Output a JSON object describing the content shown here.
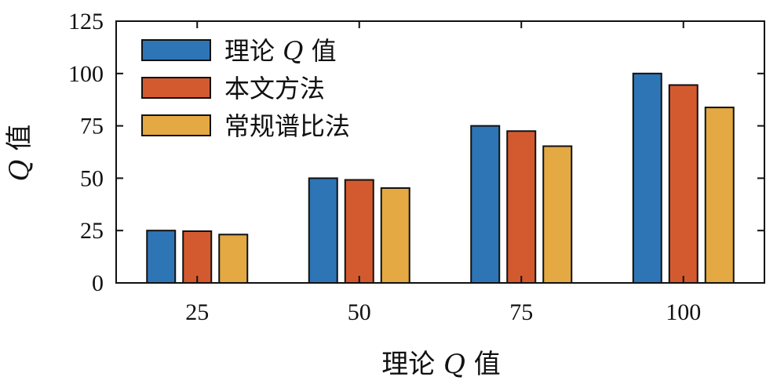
{
  "chart_data": {
    "type": "bar",
    "categories": [
      "25",
      "50",
      "75",
      "100"
    ],
    "series": [
      {
        "name": "理论 Q 值",
        "values": [
          25,
          50,
          75,
          100
        ],
        "color": "#2E75B6"
      },
      {
        "name": "本文方法",
        "values": [
          24.7,
          49.2,
          72.5,
          94.5
        ],
        "color": "#D35A2F"
      },
      {
        "name": "常规谱比法",
        "values": [
          23.1,
          45.3,
          65.3,
          83.8
        ],
        "color": "#E4A943"
      }
    ],
    "xlabel": {
      "pre": "理论 ",
      "q": "Q",
      "post": " 值"
    },
    "ylabel": {
      "q": "Q",
      "post": " 值"
    },
    "ylim": [
      0,
      125
    ],
    "yticks": [
      "0",
      "25",
      "50",
      "75",
      "100",
      "125"
    ],
    "legend_position": "top-left",
    "grid": false
  }
}
